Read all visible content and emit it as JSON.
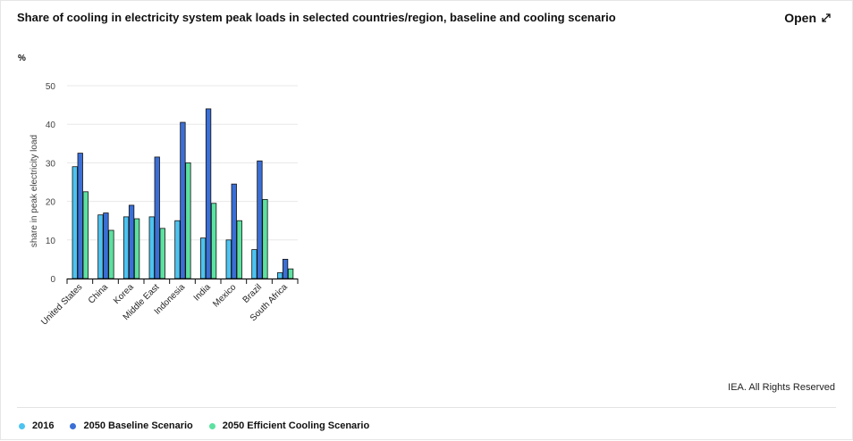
{
  "header": {
    "title": "Share of cooling in electricity system peak loads in selected countries/region, baseline and cooling scenario",
    "open_label": "Open"
  },
  "unit_label": "%",
  "footer": {
    "rights": "IEA. All Rights Reserved"
  },
  "chart_data": {
    "type": "bar",
    "title": "Share of cooling in electricity system peak loads in selected countries/region, baseline and cooling scenario",
    "xlabel": "",
    "ylabel": "share in peak electricity load",
    "ylim": [
      0,
      50
    ],
    "yticks": [
      0,
      10,
      20,
      30,
      40,
      50
    ],
    "grid": true,
    "legend_position": "bottom-left",
    "categories": [
      "United States",
      "China",
      "Korea",
      "Middle East",
      "Indonesia",
      "India",
      "Mexico",
      "Brazil",
      "South Africa"
    ],
    "series": [
      {
        "name": "2016",
        "color": "#4dc3f0",
        "values": [
          29,
          16.5,
          16,
          16,
          15,
          10.5,
          10,
          7.5,
          1.5
        ]
      },
      {
        "name": "2050 Baseline Scenario",
        "color": "#3b6fd6",
        "values": [
          32.5,
          17,
          19,
          31.5,
          40.5,
          44,
          24.5,
          30.5,
          5
        ]
      },
      {
        "name": "2050 Efficient Cooling Scenario",
        "color": "#5ce1a0",
        "values": [
          22.5,
          12.5,
          15.5,
          13,
          30,
          19.5,
          15,
          20.5,
          2.5
        ]
      }
    ]
  }
}
